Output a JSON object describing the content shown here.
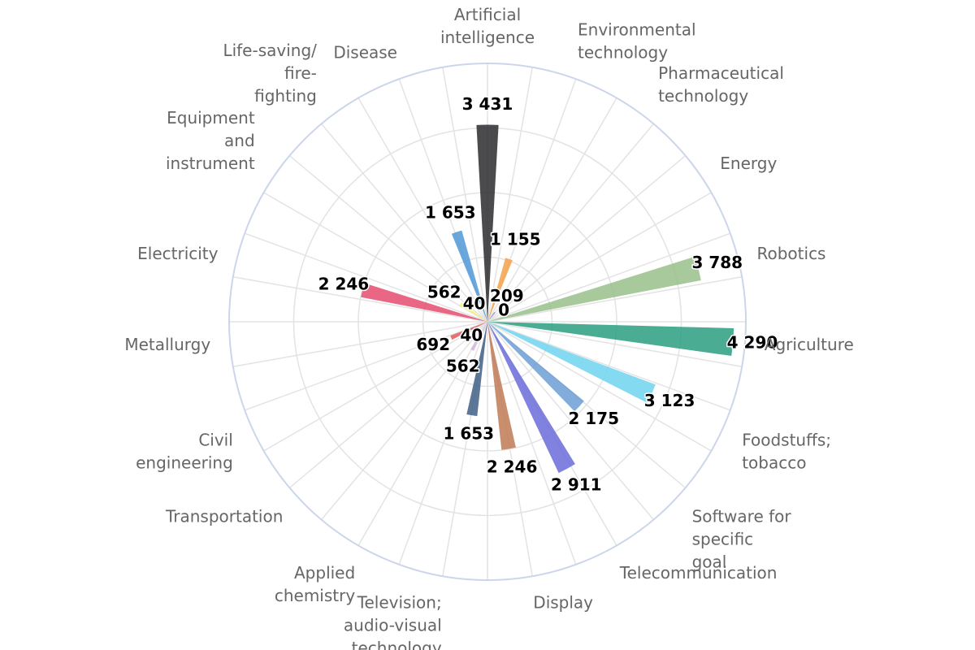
{
  "chart_data": {
    "type": "polar-bar",
    "title": "",
    "categories": [
      "Artificial intelligence",
      "Environmental technology",
      "Pharmaceutical technology",
      "Energy",
      "Robotics",
      "Agriculture",
      "Foodstuffs; tobacco",
      "Software for specific goal",
      "Telecommunication",
      "Display",
      "Television; audio-visual technology",
      "Applied chemistry",
      "Transportation",
      "Civil engineering",
      "Metallurgy",
      "Electricity",
      "Equipment and instrument",
      "Life-saving/fire-fighting",
      "Disease"
    ],
    "slices": [
      {
        "value": 3431,
        "label": "3 431",
        "color": "#2b2b2f"
      },
      {
        "value": 1155,
        "label": "1 155",
        "color": "#f4a24a"
      },
      {
        "value": 209,
        "label": "209",
        "color": "#8a8ad6"
      },
      {
        "value": 0,
        "label": "0",
        "color": "#e4d354"
      },
      {
        "value": 3788,
        "label": "3 788",
        "color": "#98c08a"
      },
      {
        "value": 4290,
        "label": "4 290",
        "color": "#2a9d7f"
      },
      {
        "value": 3123,
        "label": "3 123",
        "color": "#6fd3ee"
      },
      {
        "value": 2175,
        "label": "2 175",
        "color": "#6c9ed4"
      },
      {
        "value": 2911,
        "label": "2 911",
        "color": "#6b6bdb"
      },
      {
        "value": 2246,
        "label": "2 246",
        "color": "#c07a55"
      },
      {
        "value": 1653,
        "label": "1 653",
        "color": "#3f5f86"
      },
      {
        "value": 562,
        "label": "562",
        "color": "#d2b6de"
      },
      {
        "value": 40,
        "label": "40",
        "color": "#f4a24a"
      },
      {
        "value": 692,
        "label": "692",
        "color": "#e05a5a"
      },
      {
        "value": 0,
        "label": "",
        "color": "#b8b8ee"
      },
      {
        "value": 2246,
        "label": "2 246",
        "color": "#e54c6f"
      },
      {
        "value": 562,
        "label": "562",
        "color": "#f7f177"
      },
      {
        "value": 40,
        "label": "40",
        "color": "#e4d354"
      },
      {
        "value": 1653,
        "label": "1 653",
        "color": "#4f98d6"
      }
    ],
    "radial_max": 4500,
    "grid": true,
    "legend": "none"
  }
}
